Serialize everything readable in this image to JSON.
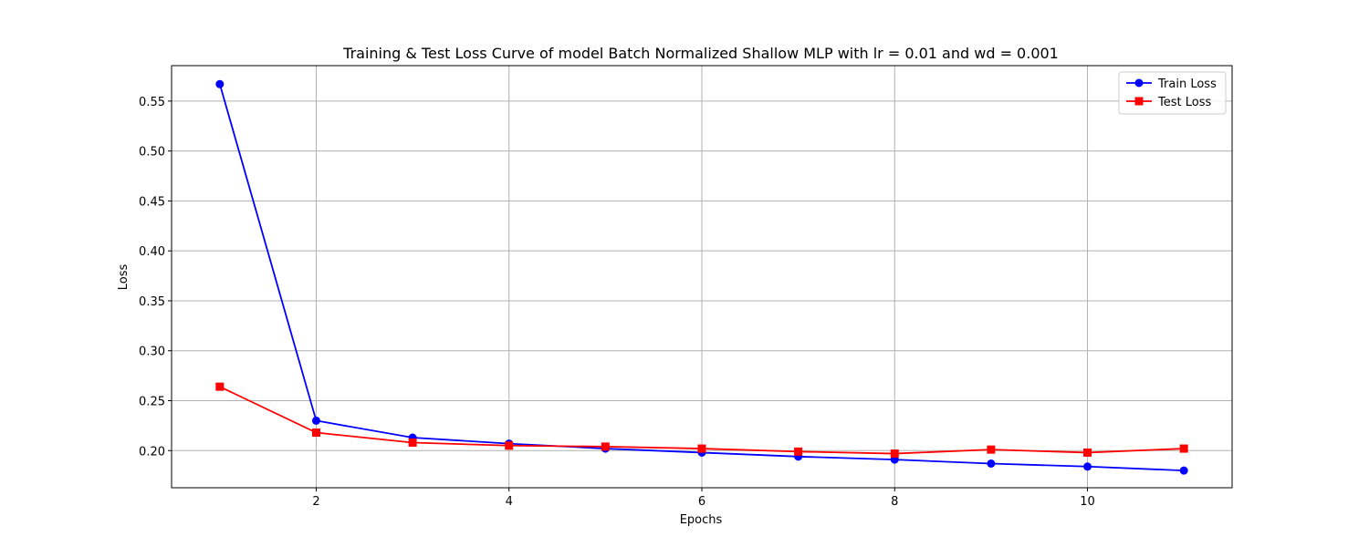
{
  "chart_data": {
    "type": "line",
    "title": "Training & Test Loss Curve of model Batch Normalized Shallow MLP with lr = 0.01 and wd = 0.001",
    "xlabel": "Epochs",
    "ylabel": "Loss",
    "x": [
      1,
      2,
      3,
      4,
      5,
      6,
      7,
      8,
      9,
      10,
      11
    ],
    "xlim": [
      0.5,
      11.5
    ],
    "ylim": [
      0.1628,
      0.5855
    ],
    "xticks": [
      2,
      4,
      6,
      8,
      10
    ],
    "yticks": [
      0.2,
      0.25,
      0.3,
      0.35,
      0.4,
      0.45,
      0.5,
      0.55
    ],
    "ytick_labels": [
      "0.20",
      "0.25",
      "0.30",
      "0.35",
      "0.40",
      "0.45",
      "0.50",
      "0.55"
    ],
    "grid": true,
    "legend_position": "top-right",
    "series": [
      {
        "name": "Train Loss",
        "color": "#0000ff",
        "marker": "circle",
        "values": [
          0.567,
          0.23,
          0.213,
          0.207,
          0.202,
          0.198,
          0.194,
          0.191,
          0.187,
          0.184,
          0.18
        ]
      },
      {
        "name": "Test Loss",
        "color": "#ff0000",
        "marker": "square",
        "values": [
          0.264,
          0.218,
          0.208,
          0.205,
          0.204,
          0.202,
          0.199,
          0.197,
          0.201,
          0.198,
          0.202
        ]
      }
    ]
  }
}
